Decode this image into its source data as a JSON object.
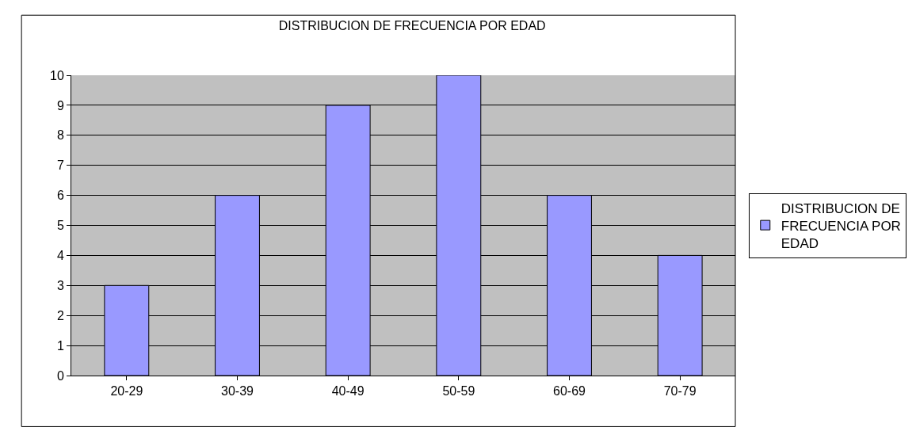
{
  "chart_data": {
    "type": "bar",
    "title": "DISTRIBUCION DE FRECUENCIA POR EDAD",
    "categories": [
      "20-29",
      "30-39",
      "40-49",
      "50-59",
      "60-69",
      "70-79"
    ],
    "series": [
      {
        "name": "DISTRIBUCION DE FRECUENCIA POR EDAD",
        "color": "#9999ff",
        "values": [
          3,
          6,
          9,
          10,
          6,
          4
        ]
      }
    ],
    "ylim": [
      0,
      10
    ],
    "yticks": [
      0,
      1,
      2,
      3,
      4,
      5,
      6,
      7,
      8,
      9,
      10
    ],
    "grid": "y",
    "legend": "right"
  }
}
